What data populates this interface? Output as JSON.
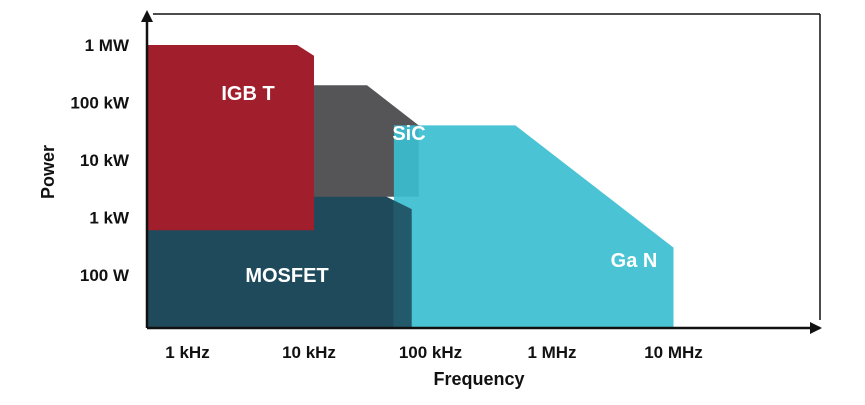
{
  "chart_data": {
    "type": "area",
    "title": "",
    "xlabel": "Frequency",
    "ylabel": "Power",
    "x_scale": "log",
    "y_scale": "log",
    "x_ticks": [
      {
        "value": 1000,
        "label": "1 kHz"
      },
      {
        "value": 10000,
        "label": "10 kHz"
      },
      {
        "value": 100000,
        "label": "100 kHz"
      },
      {
        "value": 1000000,
        "label": "1 MHz"
      },
      {
        "value": 10000000,
        "label": "10 MHz"
      }
    ],
    "y_ticks": [
      {
        "value": 100,
        "label": "100 W"
      },
      {
        "value": 1000,
        "label": "1 kW"
      },
      {
        "value": 10000,
        "label": "10 kW"
      },
      {
        "value": 100000,
        "label": "100 kW"
      },
      {
        "value": 1000000,
        "label": "1 MW"
      }
    ],
    "series": [
      {
        "name": "MOSFET",
        "color": "#1f4a5c",
        "outline": [
          [
            1000,
            15
          ],
          [
            1000,
            18000
          ],
          [
            6000,
            18000
          ],
          [
            70000,
            1400
          ],
          [
            70000,
            15
          ]
        ]
      },
      {
        "name": "IGBT",
        "color": "#a11f2d",
        "outline": [
          [
            1000,
            600
          ],
          [
            1000,
            1000000
          ],
          [
            8000,
            1000000
          ],
          [
            11000,
            650000
          ],
          [
            11000,
            600
          ]
        ]
      },
      {
        "name": "SiC",
        "color": "#555558",
        "outline": [
          [
            11000,
            2300
          ],
          [
            11000,
            200000
          ],
          [
            30000,
            200000
          ],
          [
            80000,
            40000
          ],
          [
            80000,
            2300
          ]
        ]
      },
      {
        "name": "GaN",
        "color": "#3bbfd0",
        "outline": [
          [
            50000,
            15
          ],
          [
            50000,
            40000
          ],
          [
            500000,
            40000
          ],
          [
            10000000,
            300
          ],
          [
            10000000,
            15
          ]
        ]
      }
    ],
    "region_labels": [
      "IGB T",
      "SiC",
      "MOSFET",
      "Ga N"
    ],
    "grid": false,
    "legend": "none"
  }
}
